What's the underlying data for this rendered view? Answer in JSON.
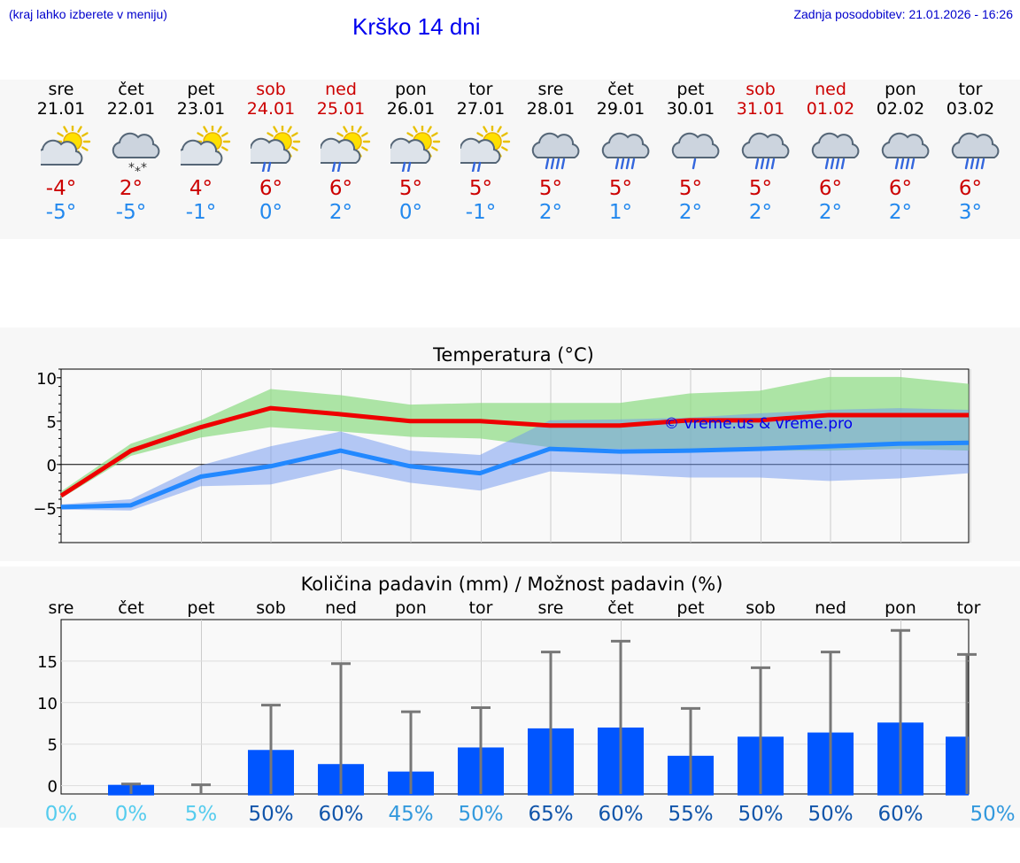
{
  "header": {
    "hint": "(kraj lahko izberete v meniju)",
    "title": "Krško 14 dni",
    "updated": "Zadnja posodobitev: 21.01.2026 - 16:26"
  },
  "colors": {
    "weekday": "#000000",
    "weekend": "#cc0000",
    "max": "#ee0000",
    "min": "#2288ff",
    "rain_bar": "#0055ff",
    "link": "#0000ee"
  },
  "days": [
    {
      "name": "sre",
      "date": "21.01",
      "max": "-4°",
      "min": "-5°",
      "icon": "partly-sunny-icon",
      "weekend": false
    },
    {
      "name": "čet",
      "date": "22.01",
      "max": "2°",
      "min": "-5°",
      "icon": "snow-cloud-icon",
      "weekend": false
    },
    {
      "name": "pet",
      "date": "23.01",
      "max": "4°",
      "min": "-1°",
      "icon": "partly-sunny-icon",
      "weekend": false
    },
    {
      "name": "sob",
      "date": "24.01",
      "max": "6°",
      "min": "0°",
      "icon": "sun-rain-icon",
      "weekend": true
    },
    {
      "name": "ned",
      "date": "25.01",
      "max": "6°",
      "min": "2°",
      "icon": "sun-rain-icon",
      "weekend": true
    },
    {
      "name": "pon",
      "date": "26.01",
      "max": "5°",
      "min": "0°",
      "icon": "sun-rain-icon",
      "weekend": false
    },
    {
      "name": "tor",
      "date": "27.01",
      "max": "5°",
      "min": "-1°",
      "icon": "sun-rain-icon",
      "weekend": false
    },
    {
      "name": "sre",
      "date": "28.01",
      "max": "5°",
      "min": "2°",
      "icon": "rain-cloud-icon",
      "weekend": false
    },
    {
      "name": "čet",
      "date": "29.01",
      "max": "5°",
      "min": "1°",
      "icon": "rain-cloud-icon",
      "weekend": false
    },
    {
      "name": "pet",
      "date": "30.01",
      "max": "5°",
      "min": "2°",
      "icon": "light-rain-icon",
      "weekend": false
    },
    {
      "name": "sob",
      "date": "31.01",
      "max": "5°",
      "min": "2°",
      "icon": "rain-cloud-icon",
      "weekend": true
    },
    {
      "name": "ned",
      "date": "01.02",
      "max": "6°",
      "min": "2°",
      "icon": "rain-cloud-icon",
      "weekend": true
    },
    {
      "name": "pon",
      "date": "02.02",
      "max": "6°",
      "min": "2°",
      "icon": "rain-cloud-icon",
      "weekend": false
    },
    {
      "name": "tor",
      "date": "03.02",
      "max": "6°",
      "min": "3°",
      "icon": "rain-cloud-icon",
      "weekend": false
    }
  ],
  "chart_data": [
    {
      "type": "line",
      "title": "Temperatura (°C)",
      "credit": "© vreme.us & vreme.pro",
      "ylim": [
        -9,
        11
      ],
      "yticks": [
        10,
        5,
        0,
        -5
      ],
      "ytick_labels": [
        "10",
        "5",
        "0",
        "−5"
      ],
      "x": [
        0,
        1,
        2,
        3,
        4,
        5,
        6,
        7,
        8,
        9,
        10,
        11,
        12,
        13
      ],
      "series": [
        {
          "name": "max",
          "values": [
            -3.6,
            1.6,
            4.3,
            6.5,
            5.8,
            5.0,
            5.0,
            4.5,
            4.5,
            5.1,
            5.1,
            5.7,
            5.7,
            5.7
          ],
          "band_low": [
            -3.9,
            1.0,
            3.1,
            4.3,
            3.8,
            3.2,
            3.0,
            2.0,
            1.8,
            1.8,
            1.6,
            1.6,
            1.8,
            1.6
          ],
          "band_high": [
            -3.1,
            2.4,
            5.1,
            8.7,
            8.0,
            6.9,
            7.1,
            7.1,
            7.1,
            8.2,
            8.5,
            10.1,
            10.1,
            9.3
          ]
        },
        {
          "name": "min",
          "values": [
            -4.9,
            -4.7,
            -1.4,
            -0.2,
            1.6,
            -0.2,
            -1.0,
            1.8,
            1.5,
            1.6,
            1.8,
            2.1,
            2.4,
            2.5
          ],
          "band_low": [
            -5.2,
            -5.3,
            -2.5,
            -2.3,
            -0.5,
            -2.1,
            -3.0,
            -0.8,
            -1.1,
            -1.5,
            -1.5,
            -1.9,
            -1.6,
            -1.0
          ],
          "band_high": [
            -4.6,
            -4.0,
            -0.1,
            2.1,
            3.8,
            1.6,
            1.1,
            5.1,
            5.2,
            5.4,
            5.9,
            6.3,
            6.5,
            6.3
          ]
        }
      ]
    },
    {
      "type": "bar",
      "title": "Količina padavin (mm) / Možnost padavin (%)",
      "ylim": [
        -1,
        20
      ],
      "yticks": [
        15,
        10,
        5,
        0
      ],
      "ytick_labels": [
        "15",
        "10",
        "5",
        "0"
      ],
      "categories": [
        "sre",
        "čet",
        "pet",
        "sob",
        "ned",
        "pon",
        "tor",
        "sre",
        "čet",
        "pet",
        "sob",
        "ned",
        "pon",
        "tor"
      ],
      "values": [
        0,
        0.1,
        0,
        4.3,
        2.6,
        1.7,
        4.6,
        6.9,
        7.0,
        3.6,
        5.9,
        6.4,
        7.6,
        5.9
      ],
      "errors": [
        0,
        0.2,
        0.1,
        9.7,
        14.7,
        8.9,
        9.4,
        16.1,
        17.4,
        9.3,
        14.2,
        16.1,
        18.7,
        15.8
      ],
      "probabilities": [
        "0%",
        "0%",
        "5%",
        "50%",
        "60%",
        "45%",
        "50%",
        "65%",
        "60%",
        "55%",
        "50%",
        "50%",
        "60%",
        "50%"
      ],
      "probability_colors": [
        "#55ccee",
        "#55ccee",
        "#55ccee",
        "#1155aa",
        "#1155aa",
        "#3399dd",
        "#3399dd",
        "#1155aa",
        "#1155aa",
        "#1155aa",
        "#1155aa",
        "#1155aa",
        "#1155aa",
        "#3399dd"
      ]
    }
  ]
}
